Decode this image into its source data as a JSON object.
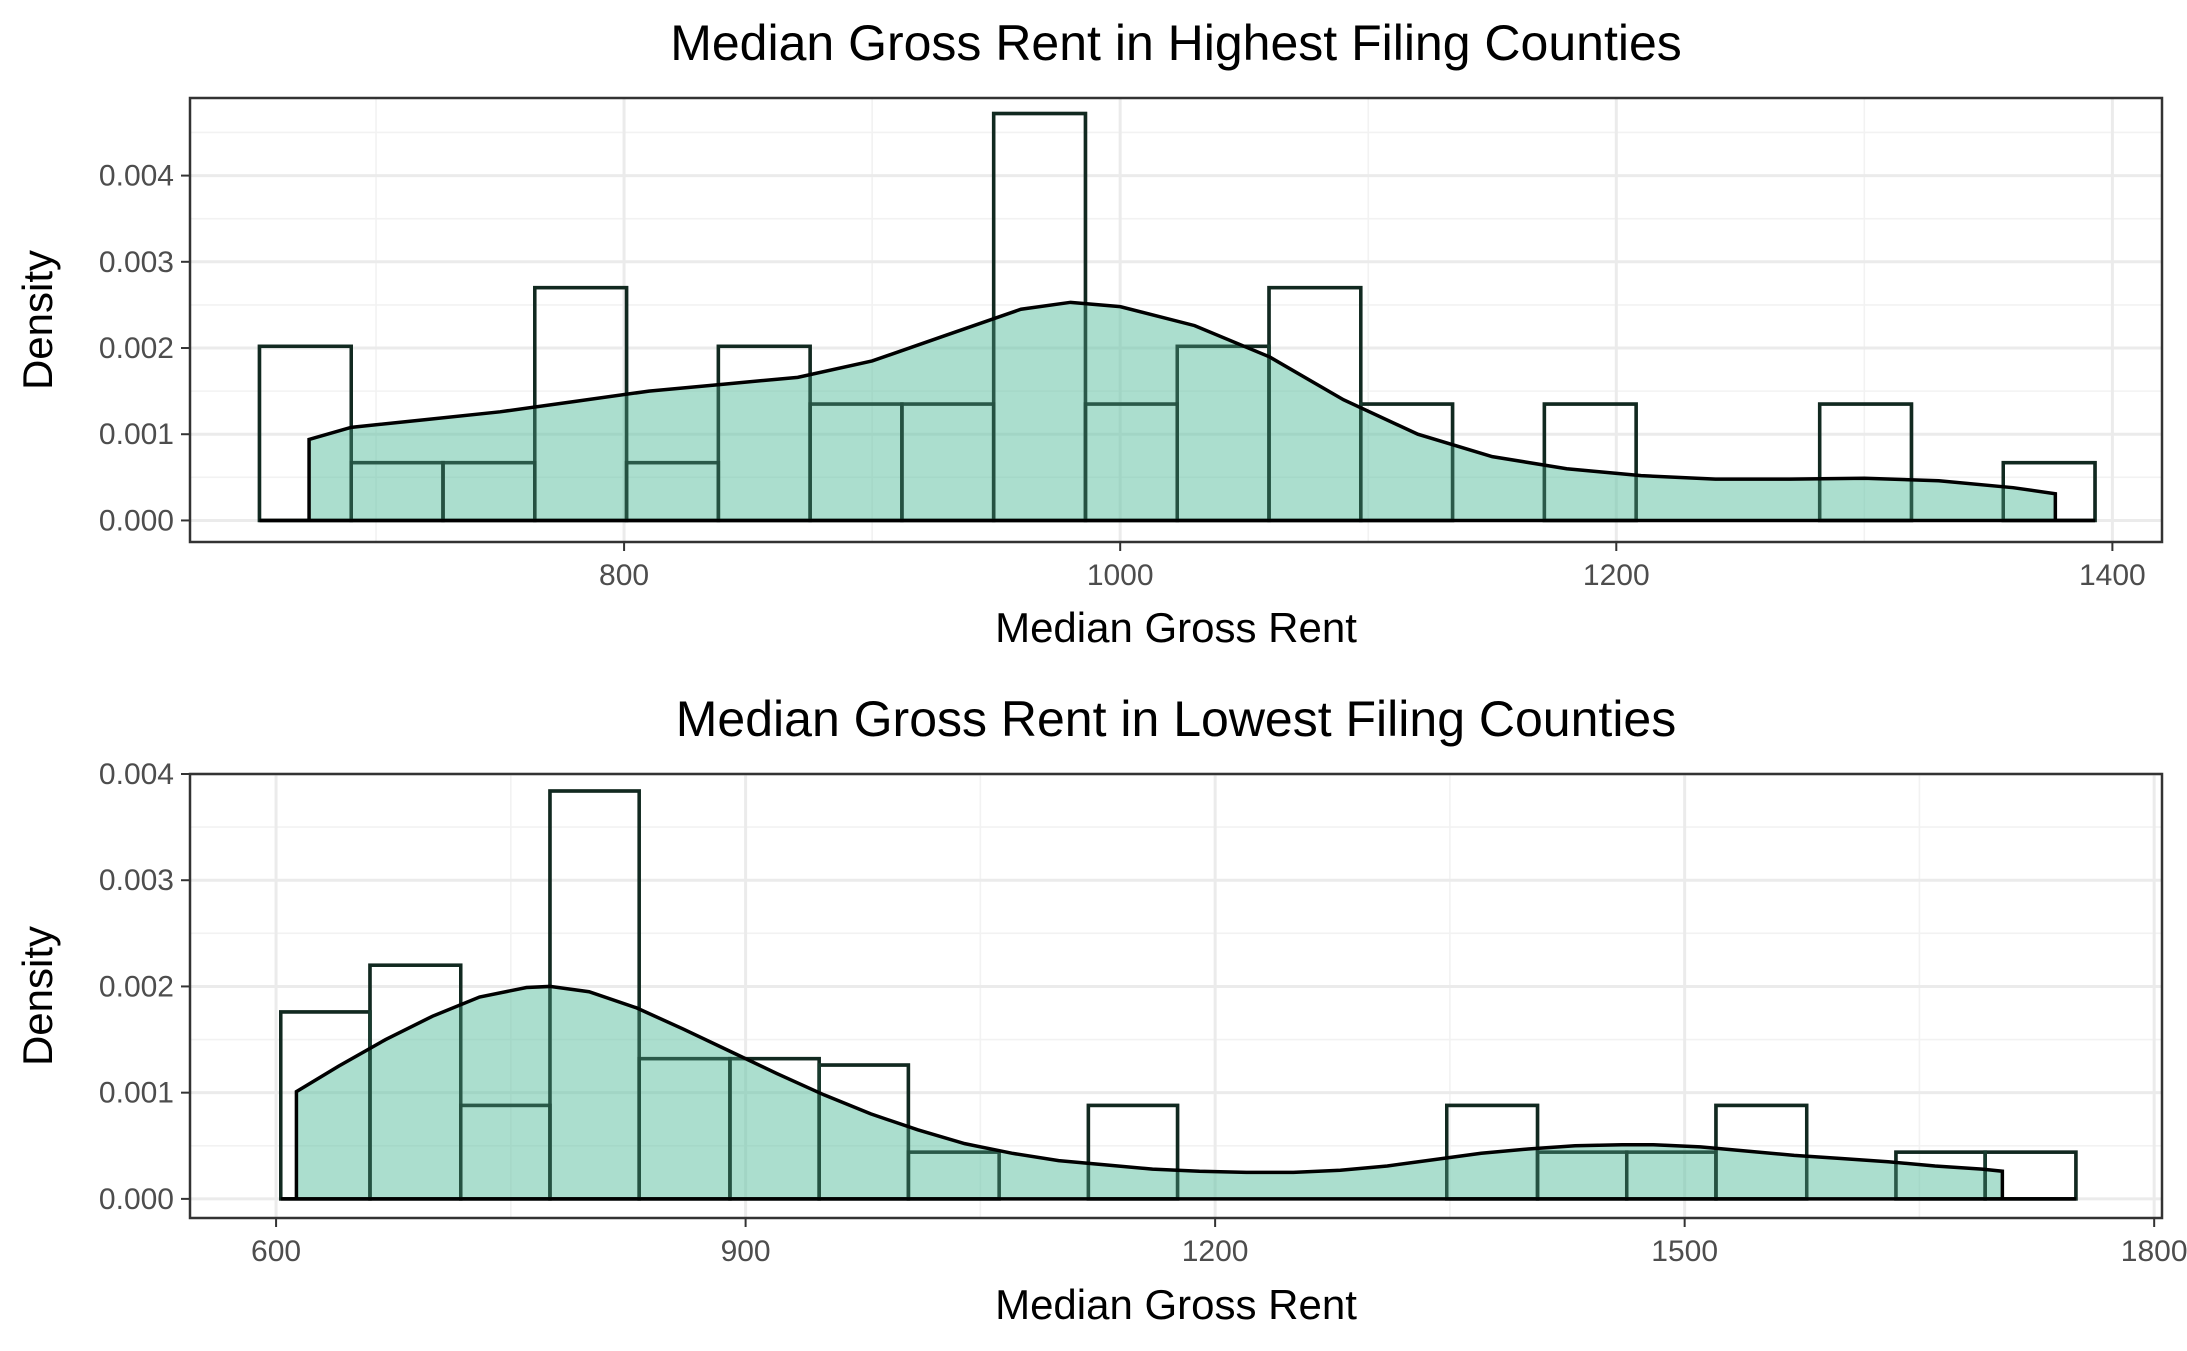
{
  "chart_data": [
    {
      "type": "histogram+density",
      "title": "Median Gross Rent in Highest Filing Counties",
      "xlabel": "Median Gross Rent",
      "ylabel": "Density",
      "xlim": [
        625,
        1420
      ],
      "ylim": [
        -0.00025,
        0.0049
      ],
      "x_ticks": [
        800,
        1000,
        1200,
        1400
      ],
      "y_ticks": [
        0.0,
        0.001,
        0.002,
        0.003,
        0.004
      ],
      "y_tick_labels": [
        "0.000",
        "0.001",
        "0.002",
        "0.003",
        "0.004"
      ],
      "x_tick_labels": [
        "800",
        "1000",
        "1200",
        "1400"
      ],
      "grid": true,
      "legend": "none",
      "fill_color": "#66c2a5",
      "fill_opacity": 0.55,
      "bins": [
        {
          "x0": 653,
          "x1": 690,
          "density": 0.00202
        },
        {
          "x0": 690,
          "x1": 727,
          "density": 0.00067
        },
        {
          "x0": 727,
          "x1": 764,
          "density": 0.00067
        },
        {
          "x0": 764,
          "x1": 801,
          "density": 0.0027
        },
        {
          "x0": 801,
          "x1": 838,
          "density": 0.00067
        },
        {
          "x0": 838,
          "x1": 875,
          "density": 0.00202
        },
        {
          "x0": 875,
          "x1": 912,
          "density": 0.00135
        },
        {
          "x0": 912,
          "x1": 949,
          "density": 0.00135
        },
        {
          "x0": 949,
          "x1": 986,
          "density": 0.00472
        },
        {
          "x0": 986,
          "x1": 1023,
          "density": 0.00135
        },
        {
          "x0": 1023,
          "x1": 1060,
          "density": 0.00202
        },
        {
          "x0": 1060,
          "x1": 1097,
          "density": 0.0027
        },
        {
          "x0": 1097,
          "x1": 1134,
          "density": 0.00135
        },
        {
          "x0": 1134,
          "x1": 1171,
          "density": 0.0
        },
        {
          "x0": 1171,
          "x1": 1208,
          "density": 0.00135
        },
        {
          "x0": 1208,
          "x1": 1245,
          "density": 0.0
        },
        {
          "x0": 1245,
          "x1": 1282,
          "density": 0.0
        },
        {
          "x0": 1282,
          "x1": 1319,
          "density": 0.00135
        },
        {
          "x0": 1319,
          "x1": 1356,
          "density": 0.0
        },
        {
          "x0": 1356,
          "x1": 1393,
          "density": 0.00067
        }
      ],
      "density_curve": {
        "x": [
          673,
          690,
          720,
          750,
          780,
          810,
          840,
          870,
          900,
          930,
          960,
          980,
          1000,
          1030,
          1060,
          1090,
          1120,
          1150,
          1180,
          1210,
          1240,
          1270,
          1300,
          1330,
          1360,
          1377
        ],
        "y": [
          0.00094,
          0.00108,
          0.00117,
          0.00126,
          0.00138,
          0.0015,
          0.00158,
          0.00166,
          0.00185,
          0.00215,
          0.00245,
          0.00253,
          0.00248,
          0.00226,
          0.0019,
          0.0014,
          0.001,
          0.00074,
          0.0006,
          0.00052,
          0.00048,
          0.00048,
          0.00049,
          0.00046,
          0.00038,
          0.00031
        ]
      }
    },
    {
      "type": "histogram+density",
      "title": "Median Gross Rent in Lowest Filing Counties",
      "xlabel": "Median Gross Rent",
      "ylabel": "Density",
      "xlim": [
        545,
        1805
      ],
      "ylim": [
        -0.00018,
        0.004
      ],
      "x_ticks": [
        600,
        900,
        1200,
        1500,
        1800
      ],
      "y_ticks": [
        0.0,
        0.001,
        0.002,
        0.003,
        0.004
      ],
      "y_tick_labels": [
        "0.000",
        "0.001",
        "0.002",
        "0.003",
        "0.004"
      ],
      "x_tick_labels": [
        "600",
        "900",
        "1200",
        "1500",
        "1800"
      ],
      "grid": true,
      "legend": "none",
      "fill_color": "#66c2a5",
      "fill_opacity": 0.55,
      "bins": [
        {
          "x0": 603,
          "x1": 660,
          "density": 0.00176
        },
        {
          "x0": 660,
          "x1": 718,
          "density": 0.0022
        },
        {
          "x0": 718,
          "x1": 775,
          "density": 0.00088
        },
        {
          "x0": 775,
          "x1": 832,
          "density": 0.00384
        },
        {
          "x0": 832,
          "x1": 890,
          "density": 0.00132
        },
        {
          "x0": 890,
          "x1": 947,
          "density": 0.00132
        },
        {
          "x0": 947,
          "x1": 1004,
          "density": 0.00126
        },
        {
          "x0": 1004,
          "x1": 1062,
          "density": 0.00044
        },
        {
          "x0": 1062,
          "x1": 1119,
          "density": 0.0
        },
        {
          "x0": 1119,
          "x1": 1176,
          "density": 0.00088
        },
        {
          "x0": 1176,
          "x1": 1234,
          "density": 0.0
        },
        {
          "x0": 1234,
          "x1": 1291,
          "density": 0.0
        },
        {
          "x0": 1291,
          "x1": 1348,
          "density": 0.0
        },
        {
          "x0": 1348,
          "x1": 1406,
          "density": 0.00088
        },
        {
          "x0": 1406,
          "x1": 1463,
          "density": 0.00044
        },
        {
          "x0": 1463,
          "x1": 1520,
          "density": 0.00044
        },
        {
          "x0": 1520,
          "x1": 1578,
          "density": 0.00088
        },
        {
          "x0": 1578,
          "x1": 1635,
          "density": 0.0
        },
        {
          "x0": 1635,
          "x1": 1692,
          "density": 0.00044
        },
        {
          "x0": 1692,
          "x1": 1750,
          "density": 0.00044
        }
      ],
      "density_curve": {
        "x": [
          613,
          640,
          670,
          700,
          730,
          760,
          775,
          800,
          830,
          860,
          890,
          920,
          950,
          980,
          1010,
          1040,
          1070,
          1100,
          1130,
          1160,
          1190,
          1220,
          1250,
          1280,
          1310,
          1340,
          1370,
          1400,
          1430,
          1460,
          1480,
          1510,
          1540,
          1570,
          1600,
          1630,
          1660,
          1690,
          1703
        ],
        "y": [
          0.00101,
          0.00125,
          0.0015,
          0.00172,
          0.0019,
          0.00199,
          0.002,
          0.00195,
          0.0018,
          0.0016,
          0.00139,
          0.00118,
          0.00098,
          0.0008,
          0.00065,
          0.00052,
          0.00043,
          0.00036,
          0.00032,
          0.00028,
          0.00026,
          0.00025,
          0.00025,
          0.00027,
          0.00031,
          0.00037,
          0.00043,
          0.00047,
          0.0005,
          0.00051,
          0.00051,
          0.00049,
          0.00045,
          0.00041,
          0.00038,
          0.00035,
          0.00031,
          0.00028,
          0.00026
        ]
      }
    }
  ]
}
